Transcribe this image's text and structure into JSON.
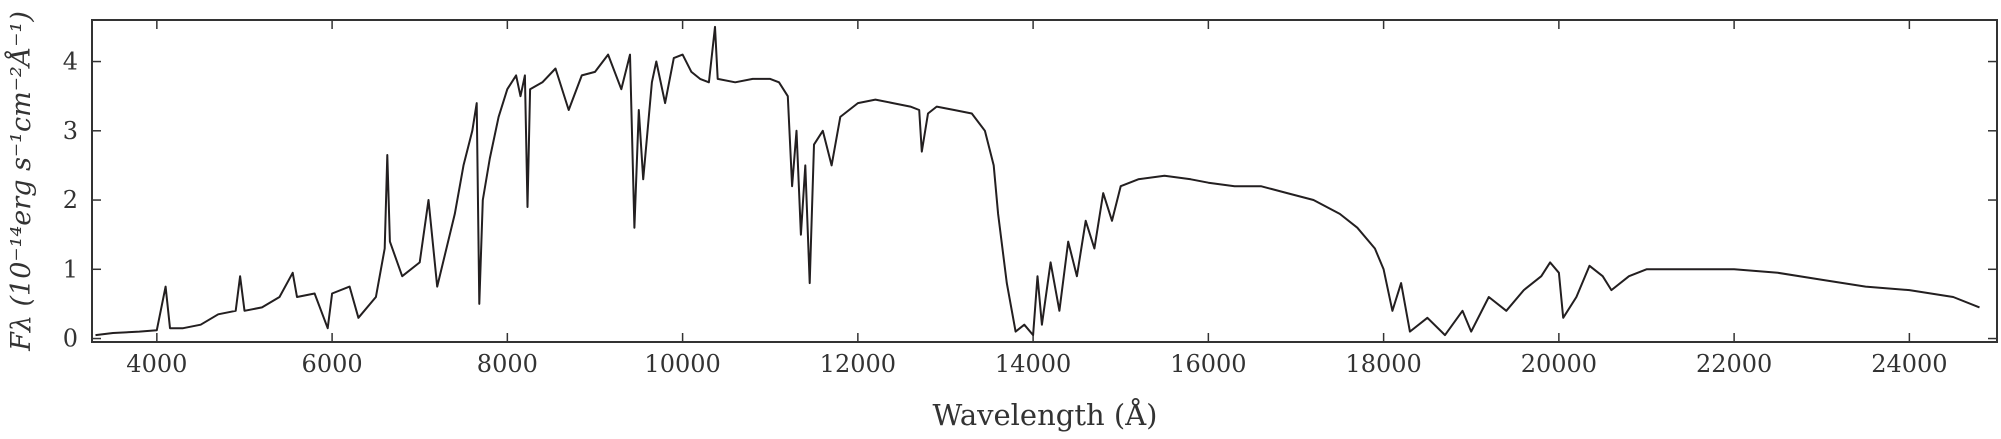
{
  "chart_data": {
    "type": "line",
    "xlabel": "Wavelength (Å)",
    "ylabel": "Fλ (10⁻¹⁴erg s⁻¹cm⁻²Å⁻¹)",
    "x": [
      3300,
      3500,
      3800,
      4000,
      4100,
      4150,
      4300,
      4500,
      4700,
      4900,
      4950,
      5000,
      5200,
      5400,
      5550,
      5600,
      5800,
      5950,
      6000,
      6200,
      6300,
      6500,
      6600,
      6630,
      6660,
      6800,
      7000,
      7100,
      7200,
      7400,
      7500,
      7600,
      7650,
      7680,
      7720,
      7800,
      7900,
      8000,
      8100,
      8150,
      8200,
      8230,
      8260,
      8400,
      8550,
      8700,
      8850,
      9000,
      9150,
      9300,
      9400,
      9450,
      9500,
      9550,
      9650,
      9700,
      9800,
      9900,
      10000,
      10100,
      10200,
      10300,
      10370,
      10400,
      10600,
      10800,
      11000,
      11100,
      11200,
      11250,
      11300,
      11350,
      11400,
      11450,
      11500,
      11600,
      11700,
      11800,
      11900,
      12000,
      12200,
      12400,
      12600,
      12700,
      12730,
      12800,
      12900,
      13100,
      13300,
      13450,
      13550,
      13600,
      13700,
      13800,
      13900,
      14000,
      14050,
      14100,
      14200,
      14300,
      14400,
      14500,
      14600,
      14700,
      14800,
      14900,
      15000,
      15200,
      15500,
      15800,
      16000,
      16300,
      16600,
      16900,
      17200,
      17500,
      17700,
      17900,
      18000,
      18100,
      18200,
      18300,
      18500,
      18700,
      18900,
      19000,
      19200,
      19400,
      19600,
      19800,
      19900,
      20000,
      20050,
      20200,
      20350,
      20500,
      20600,
      20800,
      21000,
      21500,
      22000,
      22500,
      23000,
      23500,
      24000,
      24500,
      24800
    ],
    "series": [
      {
        "color": "#231f20",
        "values": [
          0.05,
          0.08,
          0.1,
          0.12,
          0.75,
          0.15,
          0.15,
          0.2,
          0.35,
          0.4,
          0.9,
          0.4,
          0.45,
          0.6,
          0.95,
          0.6,
          0.65,
          0.15,
          0.65,
          0.75,
          0.3,
          0.6,
          1.3,
          2.65,
          1.4,
          0.9,
          1.1,
          2.0,
          0.75,
          1.8,
          2.5,
          3.0,
          3.4,
          0.5,
          2.0,
          2.6,
          3.2,
          3.6,
          3.8,
          3.5,
          3.8,
          1.9,
          3.6,
          3.7,
          3.9,
          3.3,
          3.8,
          3.85,
          4.1,
          3.6,
          4.1,
          1.6,
          3.3,
          2.3,
          3.7,
          4.0,
          3.4,
          4.05,
          4.1,
          3.85,
          3.75,
          3.7,
          4.5,
          3.75,
          3.7,
          3.75,
          3.75,
          3.7,
          3.5,
          2.2,
          3.0,
          1.5,
          2.5,
          0.8,
          2.8,
          3.0,
          2.5,
          3.2,
          3.3,
          3.4,
          3.45,
          3.4,
          3.35,
          3.3,
          2.7,
          3.25,
          3.35,
          3.3,
          3.25,
          3.0,
          2.5,
          1.8,
          0.8,
          0.1,
          0.2,
          0.05,
          0.9,
          0.2,
          1.1,
          0.4,
          1.4,
          0.9,
          1.7,
          1.3,
          2.1,
          1.7,
          2.2,
          2.3,
          2.35,
          2.3,
          2.25,
          2.2,
          2.2,
          2.1,
          2.0,
          1.8,
          1.6,
          1.3,
          1.0,
          0.4,
          0.8,
          0.1,
          0.3,
          0.05,
          0.4,
          0.1,
          0.6,
          0.4,
          0.7,
          0.9,
          1.1,
          0.95,
          0.3,
          0.6,
          1.05,
          0.9,
          0.7,
          0.9,
          1.0,
          1.0,
          1.0,
          0.95,
          0.85,
          0.75,
          0.7,
          0.6,
          0.45
        ]
      }
    ],
    "xlim": [
      3260,
      25000
    ],
    "ylim": [
      -0.05,
      4.6
    ],
    "xticks": [
      4000,
      6000,
      8000,
      10000,
      12000,
      14000,
      16000,
      18000,
      20000,
      22000,
      24000
    ],
    "yticks": [
      0,
      1,
      2,
      3,
      4
    ]
  }
}
